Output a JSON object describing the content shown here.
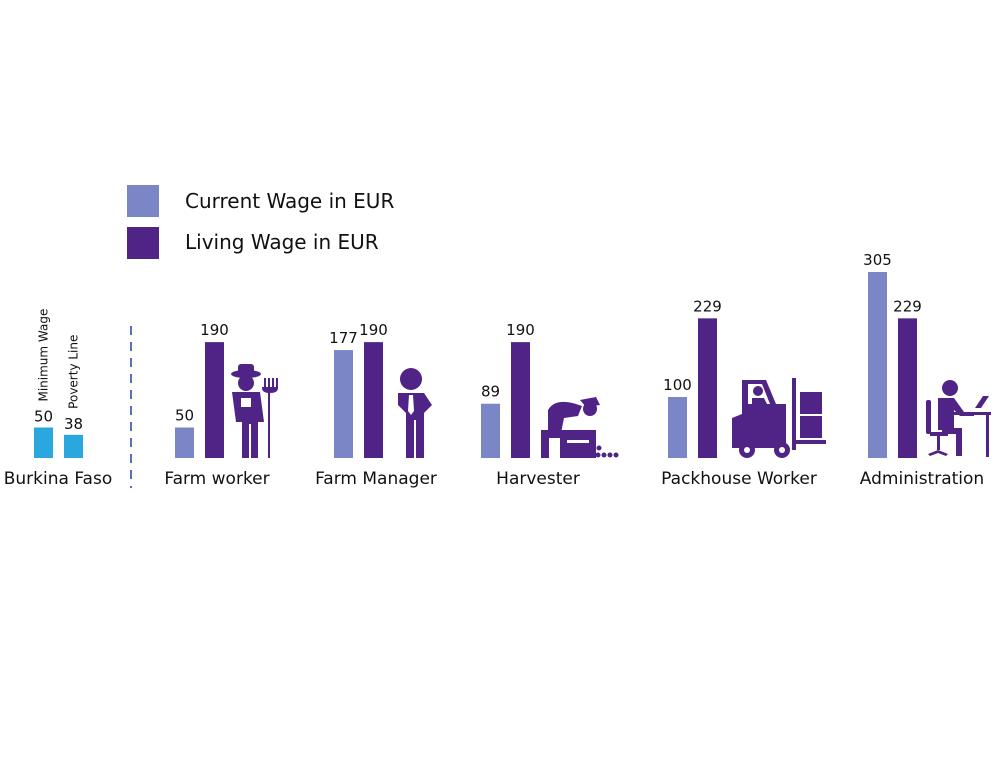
{
  "colors": {
    "current": "#7b86c6",
    "living": "#4f2486",
    "reference": "#29a7de",
    "icon": "#4f2486",
    "divider": "#5a6fb0"
  },
  "legend": {
    "current_label": "Current Wage in EUR",
    "living_label": "Living Wage in EUR"
  },
  "chart_data": {
    "type": "bar",
    "reference": {
      "category": "Burkina Faso",
      "bars": [
        {
          "name": "Minimum Wage",
          "value": 50
        },
        {
          "name": "Poverty Line",
          "value": 38
        }
      ]
    },
    "categories": [
      "Farm worker",
      "Farm Manager",
      "Harvester",
      "Packhouse Worker",
      "Administration"
    ],
    "series": [
      {
        "name": "Current Wage in EUR",
        "values": [
          50,
          177,
          89,
          100,
          305
        ]
      },
      {
        "name": "Living Wage in EUR",
        "values": [
          190,
          190,
          190,
          229,
          229
        ]
      }
    ],
    "icons": [
      "farmer-icon",
      "manager-icon",
      "harvester-icon",
      "forklift-icon",
      "office-worker-icon"
    ],
    "ylim": [
      0,
      305
    ],
    "grid": false,
    "legend_position": "top-left"
  }
}
